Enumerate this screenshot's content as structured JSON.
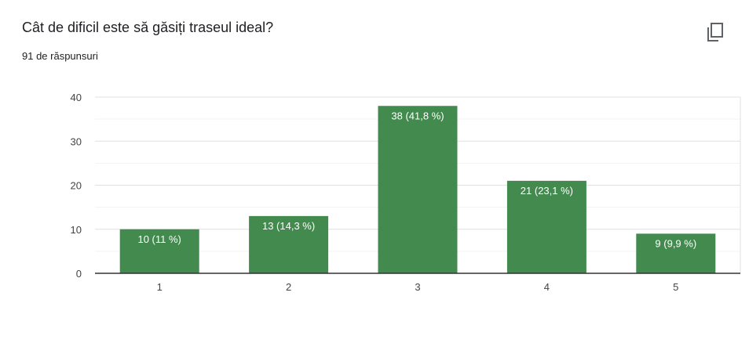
{
  "header": {
    "title": "Cât de dificil este să găsiți traseul ideal?",
    "responses": "91 de răspunsuri",
    "copy_icon": "copy-icon"
  },
  "chart_data": {
    "type": "bar",
    "categories": [
      "1",
      "2",
      "3",
      "4",
      "5"
    ],
    "values": [
      10,
      13,
      38,
      21,
      9
    ],
    "data_labels": [
      "10 (11 %)",
      "13 (14,3 %)",
      "38 (41,8 %)",
      "21 (23,1 %)",
      "9 (9,9 %)"
    ],
    "ylim": [
      0,
      40
    ],
    "yticks": [
      0,
      10,
      20,
      30,
      40
    ],
    "grid": true,
    "bar_color": "#438a4f",
    "xlabel": "",
    "ylabel": ""
  }
}
